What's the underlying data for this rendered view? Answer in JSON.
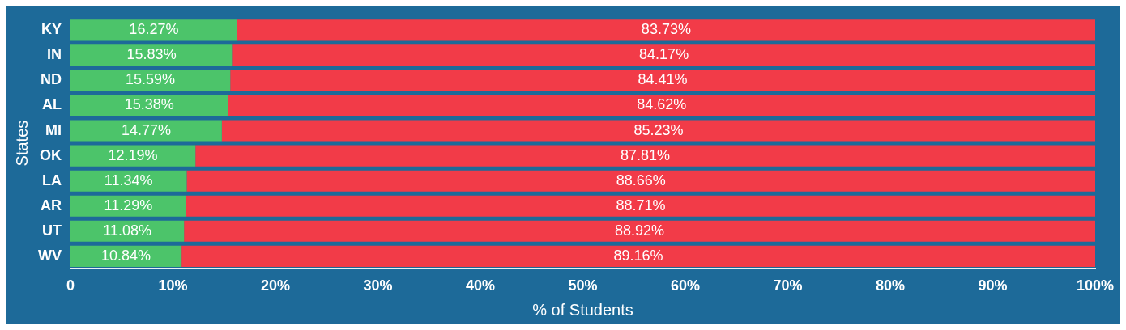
{
  "chart_data": {
    "type": "bar",
    "orientation": "horizontal",
    "stacked": true,
    "xlabel": "% of Students",
    "ylabel": "States",
    "categories": [
      "KY",
      "IN",
      "ND",
      "AL",
      "MI",
      "OK",
      "LA",
      "AR",
      "UT",
      "WV"
    ],
    "series": [
      {
        "color": "#4cc46a",
        "values": [
          16.27,
          15.83,
          15.59,
          15.38,
          14.77,
          12.19,
          11.34,
          11.29,
          11.08,
          10.84
        ],
        "value_labels": [
          "16.27%",
          "15.83%",
          "15.59%",
          "15.38%",
          "14.77%",
          "12.19%",
          "11.34%",
          "11.29%",
          "11.08%",
          "10.84%"
        ]
      },
      {
        "color": "#f23b48",
        "values": [
          83.73,
          84.17,
          84.41,
          84.62,
          85.23,
          87.81,
          88.66,
          88.71,
          88.92,
          89.16
        ],
        "value_labels": [
          "83.73%",
          "84.17%",
          "84.41%",
          "84.62%",
          "85.23%",
          "87.81%",
          "88.66%",
          "88.71%",
          "88.92%",
          "89.16%"
        ]
      }
    ],
    "xlim": [
      0,
      100
    ],
    "xticks": [
      0,
      {
        "value": 10,
        "label": "10%"
      },
      {
        "value": 20,
        "label": "20%"
      },
      {
        "value": 30,
        "label": "30%"
      },
      {
        "value": 40,
        "label": "40%"
      },
      {
        "value": 50,
        "label": "50%"
      },
      {
        "value": 60,
        "label": "60%"
      },
      {
        "value": 70,
        "label": "70%"
      },
      {
        "value": 80,
        "label": "80%"
      },
      {
        "value": 90,
        "label": "90%"
      },
      {
        "value": 100,
        "label": "100%"
      }
    ],
    "grid": false,
    "legend": false
  }
}
